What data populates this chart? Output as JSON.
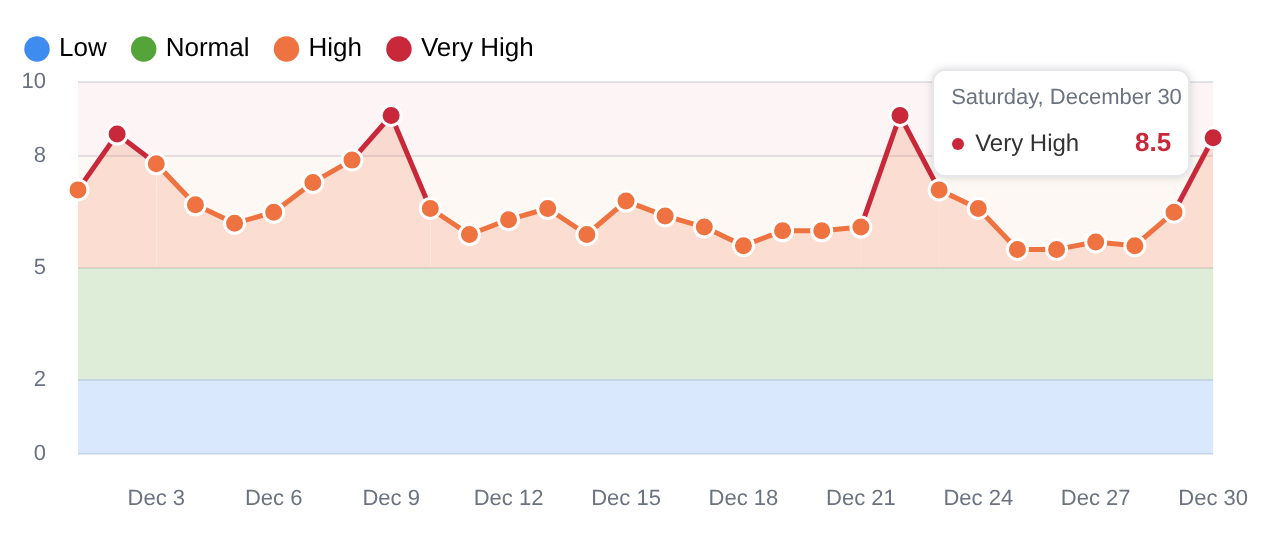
{
  "chart_data": {
    "type": "area",
    "categories": [
      null,
      null,
      "Dec 3",
      null,
      null,
      "Dec 6",
      null,
      null,
      "Dec 9",
      null,
      null,
      "Dec 12",
      null,
      null,
      "Dec 15",
      null,
      null,
      "Dec 18",
      null,
      null,
      "Dec 21",
      null,
      null,
      "Dec 24",
      null,
      null,
      "Dec 27",
      null,
      null,
      "Dec 30"
    ],
    "series": [
      {
        "color": "#ef7340",
        "colors": [
          "#ef7340",
          "#c9283a",
          "#ef7340",
          "#ef7340",
          "#ef7340",
          "#ef7340",
          "#ef7340",
          "#ef7340",
          "#c9283a",
          "#ef7340",
          "#ef7340",
          "#ef7340",
          "#ef7340",
          "#ef7340",
          "#ef7340",
          "#ef7340",
          "#ef7340",
          "#ef7340",
          "#ef7340",
          "#ef7340",
          "#ef7340",
          "#c9283a",
          "#ef7340",
          "#ef7340",
          "#ef7340",
          "#ef7340",
          "#ef7340",
          "#ef7340",
          "#ef7340",
          "#c9283a"
        ],
        "values": [
          7.1,
          8.6,
          7.8,
          6.7,
          6.2,
          6.5,
          7.3,
          7.9,
          9.1,
          6.6,
          5.9,
          6.3,
          6.6,
          5.9,
          6.8,
          6.4,
          6.1,
          5.6,
          6.0,
          6.0,
          6.1,
          9.1,
          7.1,
          6.6,
          5.5,
          5.5,
          5.7,
          5.6,
          6.5,
          8.5
        ]
      }
    ],
    "bands": [
      {
        "axis": "y",
        "from": 0,
        "to": 2,
        "label": "Low",
        "color": "#3f8cf0"
      },
      {
        "axis": "y",
        "from": 2,
        "to": 5,
        "label": "Normal",
        "color": "#54a43a"
      },
      {
        "axis": "y",
        "from": 5,
        "to": 8,
        "label": "High",
        "color": "#ef7340"
      },
      {
        "axis": "y",
        "from": 8,
        "to": 10,
        "label": "Very High",
        "color": "#c9283a"
      }
    ],
    "annotations": [
      "Saturday, December 30",
      "Very High",
      "8.5"
    ],
    "ylim": [
      0,
      10
    ],
    "yticks": [
      0,
      2,
      5,
      8,
      10
    ],
    "grid": "y",
    "legend": "top left",
    "marker": "circle",
    "line_style": "solid"
  }
}
